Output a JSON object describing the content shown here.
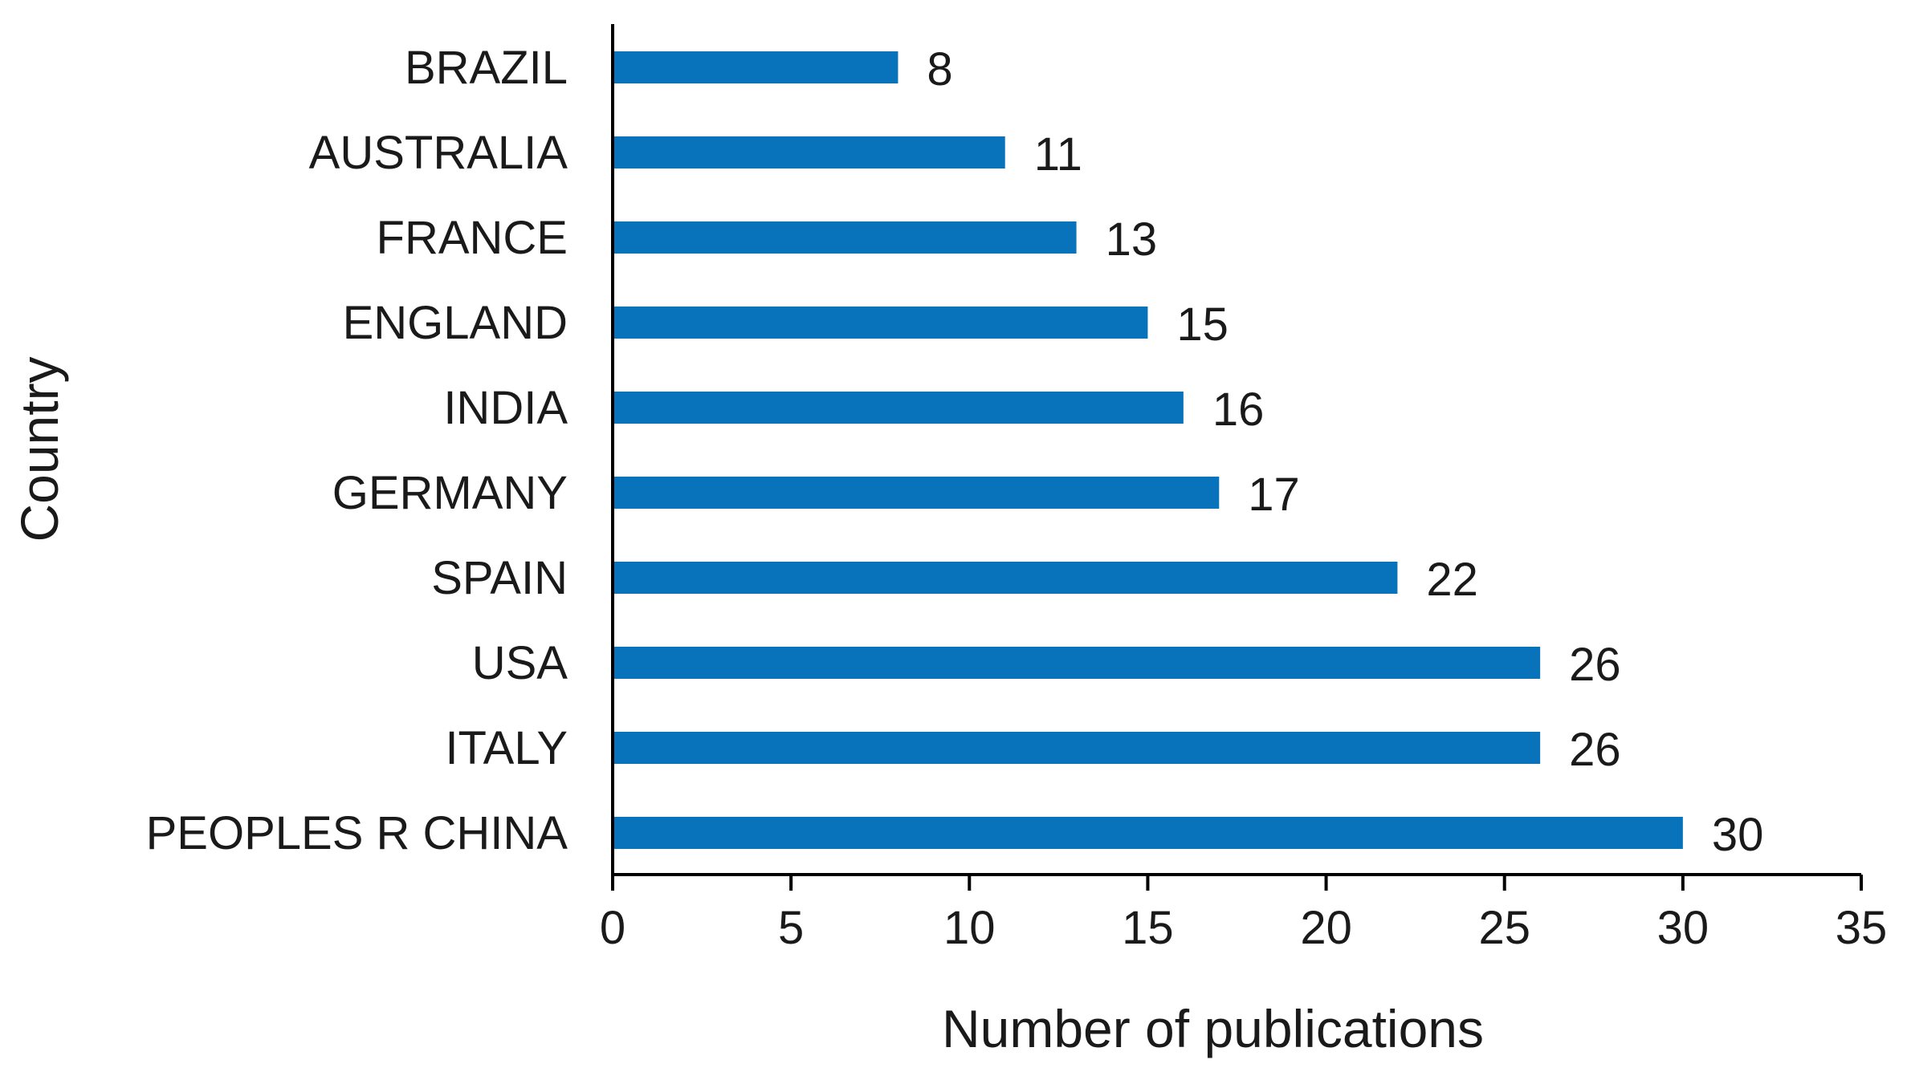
{
  "chart_data": {
    "type": "bar",
    "orientation": "horizontal",
    "categories": [
      "BRAZIL",
      "AUSTRALIA",
      "FRANCE",
      "ENGLAND",
      "INDIA",
      "GERMANY",
      "SPAIN",
      "USA",
      "ITALY",
      "PEOPLES R CHINA"
    ],
    "values": [
      8,
      11,
      13,
      15,
      16,
      17,
      22,
      26,
      26,
      30
    ],
    "data_labels": [
      "8",
      "11",
      "13",
      "15",
      "16",
      "17",
      "22",
      "26",
      "26",
      "30"
    ],
    "xlabel": "Number of publications",
    "ylabel": "Country",
    "xlim": [
      0,
      35
    ],
    "xticks": [
      "0",
      "5",
      "10",
      "15",
      "20",
      "25",
      "30",
      "35"
    ],
    "grid": false,
    "legend": "none",
    "bar_color": "#0872BB"
  }
}
